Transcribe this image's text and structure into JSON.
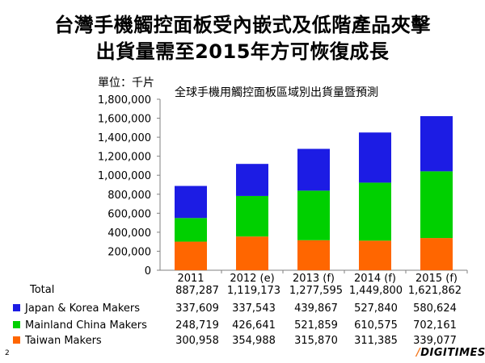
{
  "header": {
    "title_line1": "台灣手機觸控面板受內嵌式及低階產品夾擊",
    "title_line2": "出貨量需至2015年方可恢復成長"
  },
  "unit_label": "單位：千片",
  "table": {
    "total_label": "Total",
    "rows": [
      {
        "label": "Japan & Korea Makers",
        "color": "#1c1ce4"
      },
      {
        "label": "Mainland China Makers",
        "color": "#00d000"
      },
      {
        "label": "Taiwan Makers",
        "color": "#ff6600"
      }
    ],
    "total_values": [
      "887,287",
      "1,119,173",
      "1,277,595",
      "1,449,800",
      "1,621,862"
    ],
    "japan_korea_values": [
      "337,609",
      "337,543",
      "439,867",
      "527,840",
      "580,624"
    ],
    "mainland_china_values": [
      "248,719",
      "426,641",
      "521,859",
      "610,575",
      "702,161"
    ],
    "taiwan_values": [
      "300,958",
      "354,988",
      "315,870",
      "311,385",
      "339,077"
    ]
  },
  "footer": {
    "page_number": "2",
    "brand_slash": "/",
    "brand_text": "DIGITIMES"
  },
  "chart_data": {
    "type": "bar",
    "stacked": true,
    "title": "全球手機用觸控面板區域別出貨量暨預測",
    "xlabel": "",
    "ylabel": "單位：千片",
    "categories": [
      "2011",
      "2012 (e)",
      "2013 (f)",
      "2014 (f)",
      "2015 (f)"
    ],
    "ylim": [
      0,
      1800000
    ],
    "yticks": [
      0,
      200000,
      400000,
      600000,
      800000,
      1000000,
      1200000,
      1400000,
      1600000,
      1800000
    ],
    "ytick_labels": [
      "0",
      "200,000",
      "400,000",
      "600,000",
      "800,000",
      "1,000,000",
      "1,200,000",
      "1,400,000",
      "1,600,000",
      "1,800,000"
    ],
    "grid": false,
    "legend": "table-left",
    "series": [
      {
        "name": "Taiwan Makers",
        "color": "#ff6600",
        "values": [
          300958,
          354988,
          315870,
          311385,
          339077
        ]
      },
      {
        "name": "Mainland China Makers",
        "color": "#00d000",
        "values": [
          248719,
          426641,
          521859,
          610575,
          702161
        ]
      },
      {
        "name": "Japan & Korea Makers",
        "color": "#1c1ce4",
        "values": [
          337609,
          337543,
          439867,
          527840,
          580624
        ]
      }
    ]
  }
}
